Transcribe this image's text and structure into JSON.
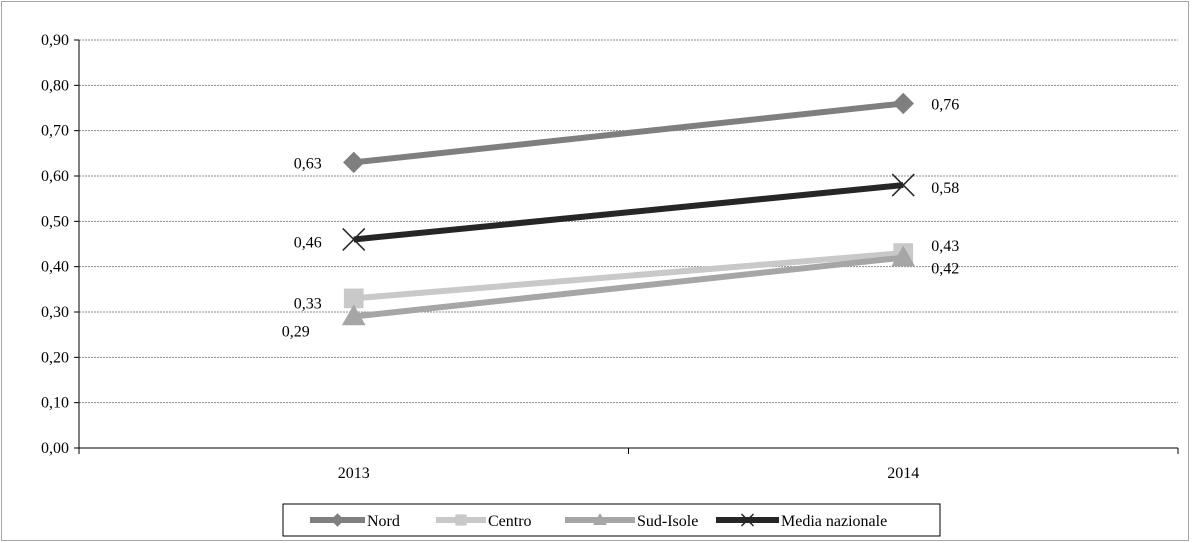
{
  "chart_data": {
    "type": "line",
    "categories": [
      "2013",
      "2014"
    ],
    "ylim": [
      0,
      0.9
    ],
    "y_ticks": [
      "0,00",
      "0,10",
      "0,20",
      "0,30",
      "0,40",
      "0,50",
      "0,60",
      "0,70",
      "0,80",
      "0,90"
    ],
    "y_tick_values": [
      0,
      0.1,
      0.2,
      0.3,
      0.4,
      0.5,
      0.6,
      0.7,
      0.8,
      0.9
    ],
    "grid": "horizontal dashed",
    "legend_position": "bottom",
    "series": [
      {
        "name": "Nord",
        "values": [
          0.63,
          0.76
        ],
        "labels": [
          "0,63",
          "0,76"
        ],
        "color": "#7f7f7f",
        "marker": "diamond"
      },
      {
        "name": "Centro",
        "values": [
          0.33,
          0.43
        ],
        "labels": [
          "0,33",
          "0,43"
        ],
        "color": "#c9c9c9",
        "marker": "square"
      },
      {
        "name": "Sud-Isole",
        "values": [
          0.29,
          0.42
        ],
        "labels": [
          "0,29",
          "0,42"
        ],
        "color": "#a6a6a6",
        "marker": "triangle"
      },
      {
        "name": "Media nazionale",
        "values": [
          0.46,
          0.58
        ],
        "labels": [
          "0,46",
          "0,58"
        ],
        "color": "#262626",
        "marker": "x"
      }
    ]
  }
}
